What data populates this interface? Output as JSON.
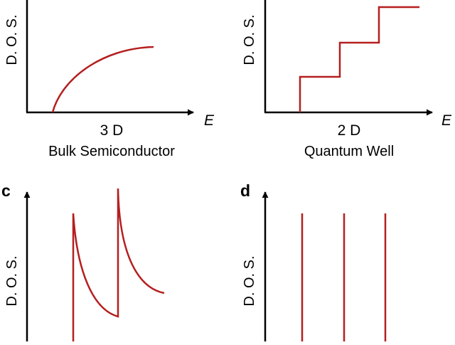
{
  "panels": {
    "a": {
      "ylabel": "D. O. S.",
      "xlabel": "E",
      "dimension": "3 D",
      "caption": "Bulk Semiconductor"
    },
    "b": {
      "ylabel": "D. O. S.",
      "xlabel": "E",
      "dimension": "2 D",
      "caption": "Quantum Well"
    },
    "c": {
      "letter": "c",
      "ylabel": "D. O. S."
    },
    "d": {
      "letter": "d",
      "ylabel": "D. O. S."
    }
  },
  "colors": {
    "curve": "#b51f1f",
    "axis": "#000000"
  }
}
